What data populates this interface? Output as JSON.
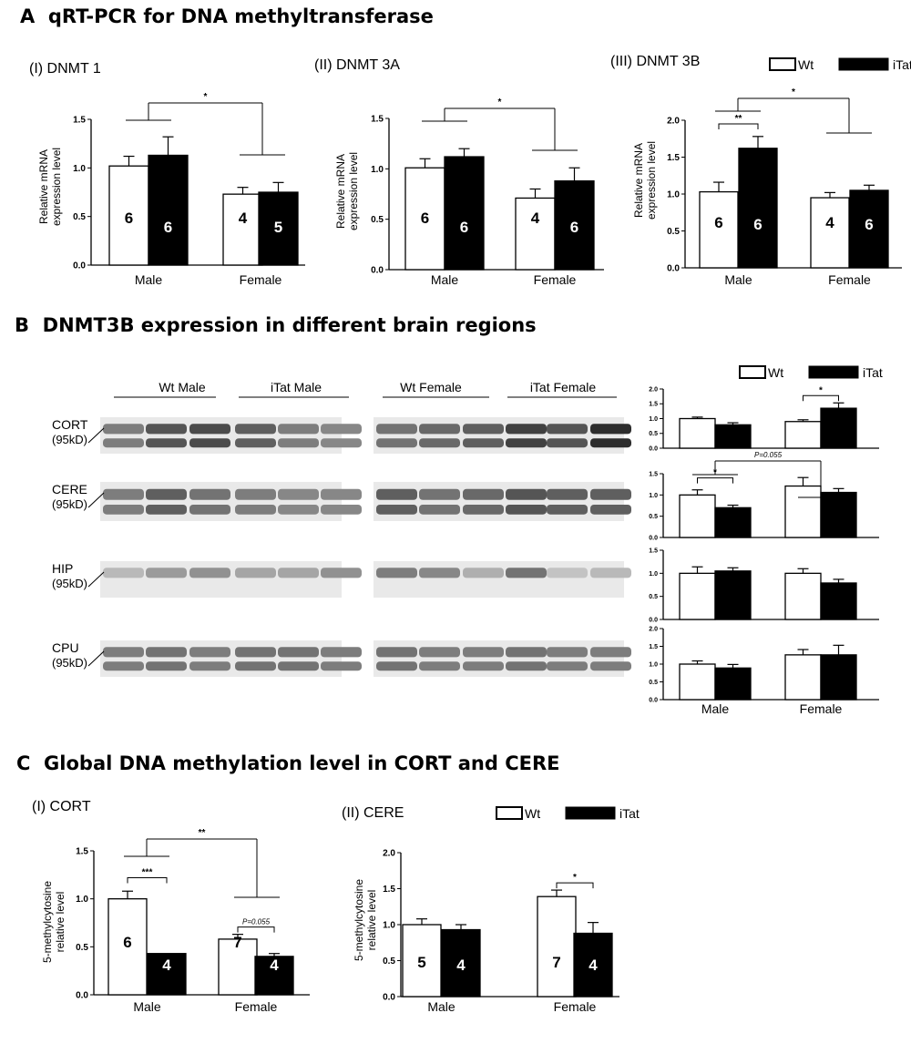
{
  "sections": {
    "a": {
      "letter": "A",
      "title": "qRT-PCR for  DNA methyltransferase"
    },
    "b": {
      "letter": "B",
      "title": "DNMT3B expression in different brain regions"
    },
    "c": {
      "letter": "C",
      "title": "Global DNA methylation level in CORT and CERE"
    }
  },
  "legend": {
    "wt": "Wt",
    "itat": "iTat"
  },
  "colors": {
    "wt": "#ffffff",
    "itat": "#000000",
    "stroke": "#000000"
  },
  "blot": {
    "groups": [
      "Wt Male",
      "iTat Male",
      "Wt Female",
      "iTat Female"
    ],
    "lanes_per_group": 3,
    "rows": [
      {
        "region": "CORT",
        "mw": "(95kD)"
      },
      {
        "region": "CERE",
        "mw": "(95kD)"
      },
      {
        "region": "HIP",
        "mw": "(95kD)"
      },
      {
        "region": "CPU",
        "mw": "(95kD)"
      }
    ]
  },
  "chart_data": [
    {
      "id": "A-I",
      "type": "bar",
      "panel_label": "(I) DNMT 1",
      "categories": [
        "Male",
        "Female"
      ],
      "ylabel": "Relative mRNA\nexpression level",
      "ylim": [
        0,
        1.5
      ],
      "yticks": [
        "0.0",
        "0.5",
        "1.0",
        "1.5"
      ],
      "series": [
        {
          "name": "Wt",
          "values": [
            1.02,
            0.73
          ],
          "errors": [
            0.1,
            0.07
          ],
          "n": [
            "6",
            "4"
          ]
        },
        {
          "name": "iTat",
          "values": [
            1.13,
            0.75
          ],
          "errors": [
            0.19,
            0.1
          ],
          "n": [
            "6",
            "5"
          ]
        }
      ],
      "annotations": [
        {
          "type": "group",
          "label": "*"
        }
      ]
    },
    {
      "id": "A-II",
      "type": "bar",
      "panel_label": "(II) DNMT 3A",
      "categories": [
        "Male",
        "Female"
      ],
      "ylabel": "Relative mRNA\nexpression level",
      "ylim": [
        0,
        1.5
      ],
      "yticks": [
        "0.0",
        "0.5",
        "1.0",
        "1.5"
      ],
      "series": [
        {
          "name": "Wt",
          "values": [
            1.01,
            0.71
          ],
          "errors": [
            0.09,
            0.09
          ],
          "n": [
            "6",
            "4"
          ]
        },
        {
          "name": "iTat",
          "values": [
            1.12,
            0.88
          ],
          "errors": [
            0.08,
            0.13
          ],
          "n": [
            "6",
            "6"
          ]
        }
      ],
      "annotations": [
        {
          "type": "group",
          "label": "*"
        }
      ]
    },
    {
      "id": "A-III",
      "type": "bar",
      "panel_label": "(III) DNMT 3B",
      "categories": [
        "Male",
        "Female"
      ],
      "ylabel": "Relative mRNA\nexpression level",
      "ylim": [
        0,
        2.0
      ],
      "yticks": [
        "0.0",
        "0.5",
        "1.0",
        "1.5",
        "2.0"
      ],
      "series": [
        {
          "name": "Wt",
          "values": [
            1.03,
            0.95
          ],
          "errors": [
            0.13,
            0.07
          ],
          "n": [
            "6",
            "4"
          ]
        },
        {
          "name": "iTat",
          "values": [
            1.62,
            1.05
          ],
          "errors": [
            0.16,
            0.07
          ],
          "n": [
            "6",
            "6"
          ]
        }
      ],
      "annotations": [
        {
          "type": "pair",
          "category": 0,
          "label": "**"
        },
        {
          "type": "group",
          "label": "*"
        }
      ]
    },
    {
      "id": "B-CORT",
      "type": "bar",
      "categories": [
        "Male",
        "Female"
      ],
      "ylim": [
        0,
        2.0
      ],
      "yticks": [
        "0.0",
        "0.5",
        "1.0",
        "1.5",
        "2.0"
      ],
      "series": [
        {
          "name": "Wt",
          "values": [
            1.0,
            0.9
          ],
          "errors": [
            0.05,
            0.06
          ]
        },
        {
          "name": "iTat",
          "values": [
            0.79,
            1.35
          ],
          "errors": [
            0.07,
            0.18
          ]
        }
      ],
      "annotations": [
        {
          "type": "pair",
          "category": 1,
          "label": "*"
        }
      ]
    },
    {
      "id": "B-CERE",
      "type": "bar",
      "categories": [
        "Male",
        "Female"
      ],
      "ylim": [
        0,
        1.5
      ],
      "yticks": [
        "0.0",
        "0.5",
        "1.0",
        "1.5"
      ],
      "series": [
        {
          "name": "Wt",
          "values": [
            1.0,
            1.21
          ],
          "errors": [
            0.12,
            0.2
          ]
        },
        {
          "name": "iTat",
          "values": [
            0.7,
            1.06
          ],
          "errors": [
            0.06,
            0.09
          ]
        }
      ],
      "annotations": [
        {
          "type": "pair",
          "category": 0,
          "label": "*"
        },
        {
          "type": "group",
          "label": "P=0.055"
        }
      ]
    },
    {
      "id": "B-HIP",
      "type": "bar",
      "categories": [
        "Male",
        "Female"
      ],
      "ylim": [
        0,
        1.5
      ],
      "yticks": [
        "0.0",
        "0.5",
        "1.0",
        "1.5"
      ],
      "series": [
        {
          "name": "Wt",
          "values": [
            1.0,
            1.0
          ],
          "errors": [
            0.14,
            0.1
          ]
        },
        {
          "name": "iTat",
          "values": [
            1.05,
            0.79
          ],
          "errors": [
            0.07,
            0.08
          ]
        }
      ],
      "annotations": []
    },
    {
      "id": "B-CPU",
      "type": "bar",
      "categories": [
        "Male",
        "Female"
      ],
      "ylim": [
        0,
        2.0
      ],
      "yticks": [
        "0.0",
        "0.5",
        "1.0",
        "1.5",
        "2.0"
      ],
      "series": [
        {
          "name": "Wt",
          "values": [
            1.0,
            1.26
          ],
          "errors": [
            0.09,
            0.15
          ]
        },
        {
          "name": "iTat",
          "values": [
            0.89,
            1.26
          ],
          "errors": [
            0.1,
            0.27
          ]
        }
      ],
      "annotations": []
    },
    {
      "id": "C-I",
      "type": "bar",
      "panel_label": "(I)  CORT",
      "categories": [
        "Male",
        "Female"
      ],
      "ylabel": "5-methylcytosine\nrelative level",
      "ylim": [
        0,
        1.5
      ],
      "yticks": [
        "0.0",
        "0.5",
        "1.0",
        "1.5"
      ],
      "series": [
        {
          "name": "Wt",
          "values": [
            1.0,
            0.58
          ],
          "errors": [
            0.08,
            0.05
          ],
          "n": [
            "6",
            "7"
          ]
        },
        {
          "name": "iTat",
          "values": [
            0.43,
            0.4
          ],
          "errors": [
            0.0,
            0.03
          ],
          "n": [
            "4",
            "4"
          ]
        }
      ],
      "annotations": [
        {
          "type": "pair",
          "category": 0,
          "label": "***"
        },
        {
          "type": "pair",
          "category": 1,
          "label": "P=0.055"
        },
        {
          "type": "group",
          "label": "**"
        }
      ]
    },
    {
      "id": "C-II",
      "type": "bar",
      "panel_label": "(II)  CERE",
      "categories": [
        "Male",
        "Female"
      ],
      "ylabel": "5-methylcytosine\nrelative level",
      "ylim": [
        0,
        2.0
      ],
      "yticks": [
        "0.0",
        "0.5",
        "1.0",
        "1.5",
        "2.0"
      ],
      "series": [
        {
          "name": "Wt",
          "values": [
            1.0,
            1.39
          ],
          "errors": [
            0.08,
            0.09
          ],
          "n": [
            "5",
            "7"
          ]
        },
        {
          "name": "iTat",
          "values": [
            0.93,
            0.88
          ],
          "errors": [
            0.07,
            0.15
          ],
          "n": [
            "4",
            "4"
          ]
        }
      ],
      "annotations": [
        {
          "type": "pair",
          "category": 1,
          "label": "*"
        }
      ]
    }
  ]
}
